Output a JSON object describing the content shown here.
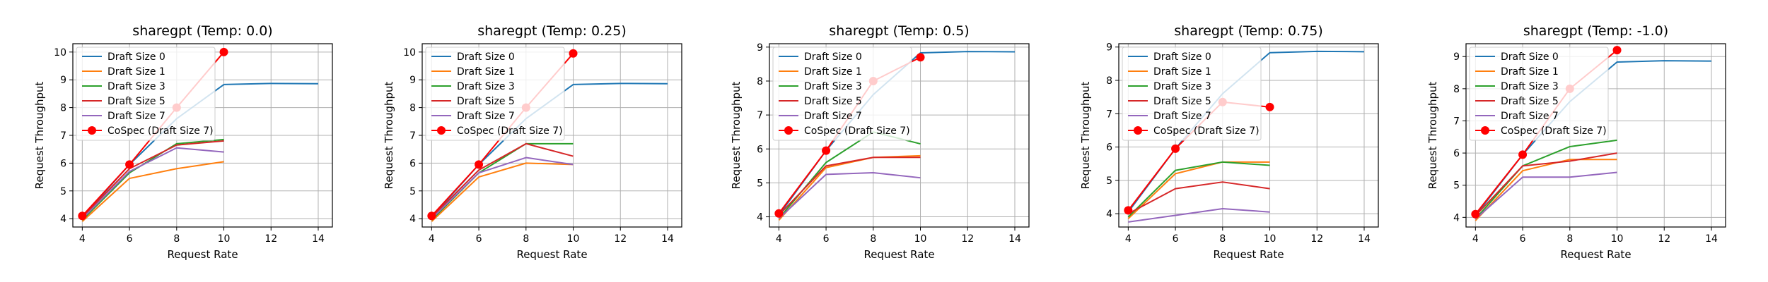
{
  "chart_data": [
    {
      "type": "line",
      "title": "sharegpt (Temp: 0.0)",
      "xlabel": "Request Rate",
      "ylabel": "Request Throughput",
      "xlim": [
        3.6,
        14.6
      ],
      "ylim": [
        3.7,
        10.3
      ],
      "xticks": [
        4,
        6,
        8,
        10,
        12,
        14
      ],
      "yticks": [
        4,
        5,
        6,
        7,
        8,
        9,
        10
      ],
      "grid": true,
      "legend_position": "upper-left",
      "series": [
        {
          "name": "Draft Size 0",
          "x": [
            4,
            6,
            8,
            10,
            12,
            14
          ],
          "y": [
            4.05,
            5.95,
            7.6,
            8.83,
            8.87,
            8.86
          ]
        },
        {
          "name": "Draft Size 1",
          "x": [
            4,
            6,
            8,
            10
          ],
          "y": [
            3.9,
            5.45,
            5.8,
            6.05
          ]
        },
        {
          "name": "Draft Size 3",
          "x": [
            4,
            6,
            8,
            10
          ],
          "y": [
            3.95,
            5.65,
            6.7,
            6.85
          ]
        },
        {
          "name": "Draft Size 5",
          "x": [
            4,
            6,
            8,
            10
          ],
          "y": [
            4.05,
            5.8,
            6.65,
            6.8
          ]
        },
        {
          "name": "Draft Size 7",
          "x": [
            4,
            6,
            8,
            10
          ],
          "y": [
            4.0,
            5.7,
            6.55,
            6.4
          ]
        },
        {
          "name": "CoSpec (Draft Size 7)",
          "x": [
            4,
            6,
            8,
            10
          ],
          "y": [
            4.1,
            5.95,
            8.0,
            10.0
          ],
          "marker": "circle"
        }
      ]
    },
    {
      "type": "line",
      "title": "sharegpt (Temp: 0.25)",
      "xlabel": "Request Rate",
      "ylabel": "Request Throughput",
      "xlim": [
        3.6,
        14.6
      ],
      "ylim": [
        3.7,
        10.3
      ],
      "xticks": [
        4,
        6,
        8,
        10,
        12,
        14
      ],
      "yticks": [
        4,
        5,
        6,
        7,
        8,
        9,
        10
      ],
      "grid": true,
      "legend_position": "upper-left",
      "series": [
        {
          "name": "Draft Size 0",
          "x": [
            4,
            6,
            8,
            10,
            12,
            14
          ],
          "y": [
            4.05,
            5.95,
            7.6,
            8.83,
            8.87,
            8.86
          ]
        },
        {
          "name": "Draft Size 1",
          "x": [
            4,
            6,
            8,
            10
          ],
          "y": [
            3.9,
            5.5,
            6.0,
            5.95
          ]
        },
        {
          "name": "Draft Size 3",
          "x": [
            4,
            6,
            8,
            10
          ],
          "y": [
            3.95,
            5.65,
            6.7,
            6.7
          ]
        },
        {
          "name": "Draft Size 5",
          "x": [
            4,
            6,
            8,
            10
          ],
          "y": [
            4.05,
            5.75,
            6.7,
            6.25
          ]
        },
        {
          "name": "Draft Size 7",
          "x": [
            4,
            6,
            8,
            10
          ],
          "y": [
            4.0,
            5.65,
            6.2,
            5.95
          ]
        },
        {
          "name": "CoSpec (Draft Size 7)",
          "x": [
            4,
            6,
            8,
            10
          ],
          "y": [
            4.1,
            5.95,
            8.0,
            9.95
          ],
          "marker": "circle"
        }
      ]
    },
    {
      "type": "line",
      "title": "sharegpt (Temp: 0.5)",
      "xlabel": "Request Rate",
      "ylabel": "Request Throughput",
      "xlim": [
        3.6,
        14.6
      ],
      "ylim": [
        3.7,
        9.1
      ],
      "xticks": [
        4,
        6,
        8,
        10,
        12,
        14
      ],
      "yticks": [
        4,
        5,
        6,
        7,
        8,
        9
      ],
      "grid": true,
      "legend_position": "upper-left",
      "series": [
        {
          "name": "Draft Size 0",
          "x": [
            4,
            6,
            8,
            10,
            12,
            14
          ],
          "y": [
            4.05,
            5.95,
            7.6,
            8.83,
            8.87,
            8.86
          ]
        },
        {
          "name": "Draft Size 1",
          "x": [
            4,
            6,
            8,
            10
          ],
          "y": [
            3.9,
            5.45,
            5.75,
            5.8
          ]
        },
        {
          "name": "Draft Size 3",
          "x": [
            4,
            6,
            8,
            10
          ],
          "y": [
            3.95,
            5.6,
            6.5,
            6.15
          ]
        },
        {
          "name": "Draft Size 5",
          "x": [
            4,
            6,
            8,
            10
          ],
          "y": [
            4.05,
            5.5,
            5.75,
            5.75
          ]
        },
        {
          "name": "Draft Size 7",
          "x": [
            4,
            6,
            8,
            10
          ],
          "y": [
            3.95,
            5.25,
            5.3,
            5.15
          ]
        },
        {
          "name": "CoSpec (Draft Size 7)",
          "x": [
            4,
            6,
            8,
            10
          ],
          "y": [
            4.1,
            5.95,
            8.0,
            8.7
          ],
          "marker": "circle"
        }
      ]
    },
    {
      "type": "line",
      "title": "sharegpt (Temp: 0.75)",
      "xlabel": "Request Rate",
      "ylabel": "Request Throughput",
      "xlim": [
        3.6,
        14.6
      ],
      "ylim": [
        3.6,
        9.1
      ],
      "xticks": [
        4,
        6,
        8,
        10,
        12,
        14
      ],
      "yticks": [
        4,
        5,
        6,
        7,
        8,
        9
      ],
      "grid": true,
      "legend_position": "upper-left",
      "series": [
        {
          "name": "Draft Size 0",
          "x": [
            4,
            6,
            8,
            10,
            12,
            14
          ],
          "y": [
            4.05,
            5.95,
            7.6,
            8.83,
            8.87,
            8.86
          ]
        },
        {
          "name": "Draft Size 1",
          "x": [
            4,
            6,
            8,
            10
          ],
          "y": [
            3.85,
            5.2,
            5.55,
            5.55
          ]
        },
        {
          "name": "Draft Size 3",
          "x": [
            4,
            6,
            8,
            10
          ],
          "y": [
            3.9,
            5.3,
            5.55,
            5.45
          ]
        },
        {
          "name": "Draft Size 5",
          "x": [
            4,
            6,
            8,
            10
          ],
          "y": [
            4.0,
            4.75,
            4.95,
            4.75
          ]
        },
        {
          "name": "Draft Size 7",
          "x": [
            4,
            6,
            8,
            10
          ],
          "y": [
            3.75,
            3.95,
            4.15,
            4.05
          ]
        },
        {
          "name": "CoSpec (Draft Size 7)",
          "x": [
            4,
            6,
            8,
            10
          ],
          "y": [
            4.1,
            5.95,
            7.35,
            7.2
          ],
          "marker": "circle"
        }
      ]
    },
    {
      "type": "line",
      "title": "sharegpt (Temp: -1.0)",
      "xlabel": "Request Rate",
      "ylabel": "Request Throughput",
      "xlim": [
        3.6,
        14.6
      ],
      "ylim": [
        3.7,
        9.4
      ],
      "xticks": [
        4,
        6,
        8,
        10,
        12,
        14
      ],
      "yticks": [
        4,
        5,
        6,
        7,
        8,
        9
      ],
      "grid": true,
      "legend_position": "upper-left",
      "series": [
        {
          "name": "Draft Size 0",
          "x": [
            4,
            6,
            8,
            10,
            12,
            14
          ],
          "y": [
            4.05,
            5.95,
            7.6,
            8.83,
            8.87,
            8.86
          ]
        },
        {
          "name": "Draft Size 1",
          "x": [
            4,
            6,
            8,
            10
          ],
          "y": [
            3.9,
            5.45,
            5.8,
            5.8
          ]
        },
        {
          "name": "Draft Size 3",
          "x": [
            4,
            6,
            8,
            10
          ],
          "y": [
            3.95,
            5.6,
            6.2,
            6.4
          ]
        },
        {
          "name": "Draft Size 5",
          "x": [
            4,
            6,
            8,
            10
          ],
          "y": [
            4.05,
            5.6,
            5.75,
            6.0
          ]
        },
        {
          "name": "Draft Size 7",
          "x": [
            4,
            6,
            8,
            10
          ],
          "y": [
            3.95,
            5.25,
            5.25,
            5.4
          ]
        },
        {
          "name": "CoSpec (Draft Size 7)",
          "x": [
            4,
            6,
            8,
            10
          ],
          "y": [
            4.1,
            5.95,
            8.0,
            9.2
          ],
          "marker": "circle"
        }
      ]
    }
  ],
  "colors": {
    "Draft Size 0": "#1f77b4",
    "Draft Size 1": "#ff7f0e",
    "Draft Size 3": "#2ca02c",
    "Draft Size 5": "#d62728",
    "Draft Size 7": "#9467bd",
    "CoSpec (Draft Size 7)": "#ff0000",
    "grid": "#b0b0b0",
    "axes": "#000000"
  }
}
